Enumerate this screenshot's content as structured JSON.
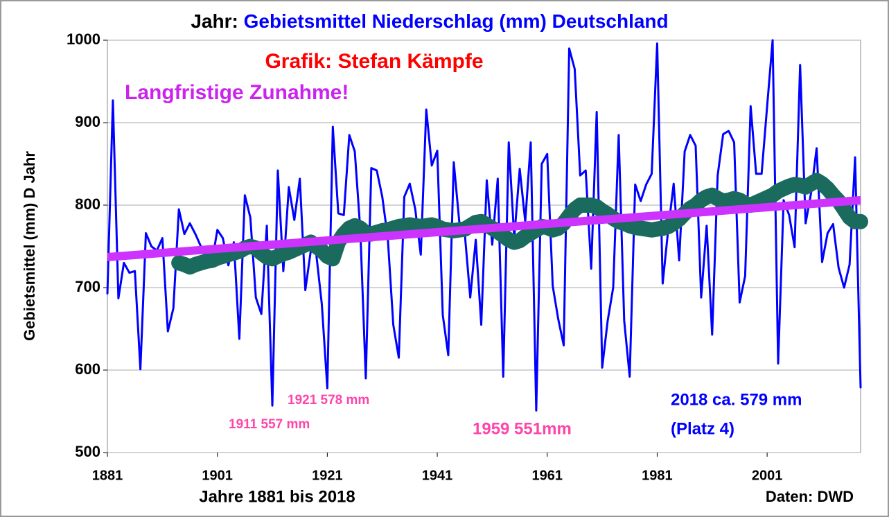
{
  "chart_data": {
    "type": "line",
    "title": [
      {
        "text": "Jahr:",
        "color": "#000000"
      },
      {
        "text": "Gebietsmittel Niederschlag (mm) Deutschland",
        "color": "#0000ff"
      }
    ],
    "x_label": "Jahre 1881 bis 2018",
    "y_label": "Gebietsmittel (mm) D Jahr",
    "xlim": [
      1881,
      2018
    ],
    "ylim": [
      500,
      1000
    ],
    "xticks": [
      1881,
      1901,
      1921,
      1941,
      1961,
      1981,
      2001
    ],
    "yticks": [
      500,
      600,
      700,
      800,
      900,
      1000
    ],
    "grid": true,
    "x": [
      1881,
      1882,
      1883,
      1884,
      1885,
      1886,
      1887,
      1888,
      1889,
      1890,
      1891,
      1892,
      1893,
      1894,
      1895,
      1896,
      1897,
      1898,
      1899,
      1900,
      1901,
      1902,
      1903,
      1904,
      1905,
      1906,
      1907,
      1908,
      1909,
      1910,
      1911,
      1912,
      1913,
      1914,
      1915,
      1916,
      1917,
      1918,
      1919,
      1920,
      1921,
      1922,
      1923,
      1924,
      1925,
      1926,
      1927,
      1928,
      1929,
      1930,
      1931,
      1932,
      1933,
      1934,
      1935,
      1936,
      1937,
      1938,
      1939,
      1940,
      1941,
      1942,
      1943,
      1944,
      1945,
      1946,
      1947,
      1948,
      1949,
      1950,
      1951,
      1952,
      1953,
      1954,
      1955,
      1956,
      1957,
      1958,
      1959,
      1960,
      1961,
      1962,
      1963,
      1964,
      1965,
      1966,
      1967,
      1968,
      1969,
      1970,
      1971,
      1972,
      1973,
      1974,
      1975,
      1976,
      1977,
      1978,
      1979,
      1980,
      1981,
      1982,
      1983,
      1984,
      1985,
      1986,
      1987,
      1988,
      1989,
      1990,
      1991,
      1992,
      1993,
      1994,
      1995,
      1996,
      1997,
      1998,
      1999,
      2000,
      2001,
      2002,
      2003,
      2004,
      2005,
      2006,
      2007,
      2008,
      2009,
      2010,
      2011,
      2012,
      2013,
      2014,
      2015,
      2016,
      2017,
      2018
    ],
    "series": [
      {
        "color": "#0000ff",
        "values": [
          693,
          927,
          687,
          730,
          718,
          720,
          601,
          766,
          750,
          745,
          760,
          647,
          675,
          795,
          765,
          778,
          765,
          750,
          735,
          730,
          770,
          760,
          727,
          755,
          638,
          812,
          785,
          688,
          668,
          775,
          557,
          842,
          720,
          822,
          782,
          832,
          697,
          745,
          740,
          680,
          578,
          895,
          790,
          788,
          885,
          865,
          770,
          590,
          845,
          842,
          810,
          760,
          655,
          615,
          810,
          826,
          795,
          740,
          916,
          848,
          866,
          667,
          618,
          852,
          780,
          766,
          688,
          758,
          655,
          830,
          752,
          832,
          592,
          876,
          760,
          844,
          780,
          876,
          551,
          850,
          862,
          702,
          662,
          630,
          990,
          965,
          836,
          842,
          723,
          913,
          603,
          660,
          700,
          885,
          660,
          592,
          825,
          805,
          825,
          838,
          996,
          705,
          770,
          826,
          733,
          865,
          885,
          872,
          688,
          775,
          643,
          836,
          886,
          890,
          876,
          682,
          714,
          920,
          838,
          838,
          920,
          1000,
          608,
          806,
          788,
          749,
          970,
          778,
          815,
          869,
          731,
          766,
          777,
          724,
          700,
          728,
          858,
          579
        ]
      },
      {
        "color": "#1a6b5e",
        "values": [
          null,
          null,
          null,
          null,
          null,
          null,
          null,
          null,
          null,
          null,
          null,
          null,
          null,
          730,
          728,
          725,
          728,
          730,
          732,
          733,
          736,
          738,
          740,
          742,
          744,
          748,
          750,
          748,
          742,
          737,
          735,
          738,
          741,
          743,
          746,
          749,
          752,
          755,
          750,
          745,
          738,
          735,
          755,
          765,
          772,
          775,
          772,
          766,
          765,
          767,
          769,
          770,
          772,
          774,
          775,
          776,
          775,
          774,
          775,
          776,
          774,
          771,
          770,
          769,
          770,
          771,
          775,
          779,
          780,
          776,
          772,
          768,
          763,
          758,
          755,
          757,
          762,
          766,
          770,
          774,
          773,
          770,
          772,
          778,
          787,
          795,
          800,
          800,
          800,
          798,
          793,
          789,
          784,
          780,
          778,
          775,
          773,
          772,
          771,
          770,
          771,
          772,
          774,
          778,
          783,
          790,
          796,
          800,
          806,
          810,
          812,
          808,
          805,
          806,
          808,
          806,
          802,
          800,
          803,
          806,
          809,
          812,
          817,
          820,
          823,
          825,
          824,
          822,
          826,
          830,
          826,
          820,
          812,
          805,
          795,
          785,
          780,
          780
        ]
      }
    ],
    "trend": {
      "color": "#cc33ff",
      "x": [
        1881,
        2018
      ],
      "values": [
        737,
        806
      ]
    },
    "annotations": [
      {
        "text": "Grafik: Stefan Kämpfe",
        "color": "#ff0000"
      },
      {
        "text": "Langfristige Zunahme!",
        "color": "#cc22ee"
      },
      {
        "text": "1921 578 mm",
        "color": "#ff44aa"
      },
      {
        "text": "1911 557 mm",
        "color": "#ff44aa"
      },
      {
        "text": "1959 551mm",
        "color": "#ff44aa"
      },
      {
        "text": "2018 ca. 579 mm",
        "color": "#0000ff"
      },
      {
        "text": "(Platz 4)",
        "color": "#0000ff"
      },
      {
        "text": "Daten: DWD",
        "color": "#000000"
      }
    ]
  }
}
